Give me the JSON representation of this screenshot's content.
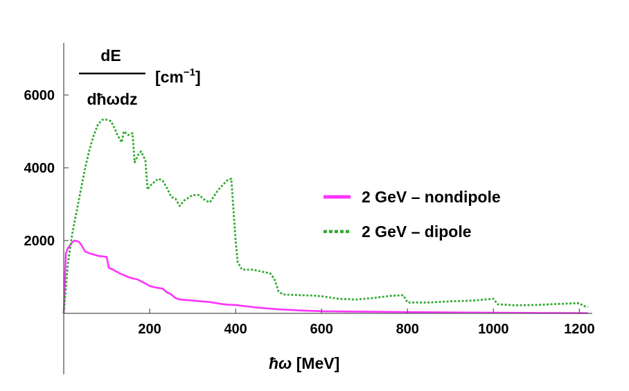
{
  "chart_data": {
    "type": "line",
    "xlabel_symbol": "ħω",
    "xlabel_unit": "[MeV]",
    "ylabel_numerator": "dE",
    "ylabel_denominator": "dħωdz",
    "ylabel_unit": "[cm",
    "ylabel_unit_exp": "−1",
    "ylabel_unit_close": "]",
    "xlim": [
      0,
      1230
    ],
    "ylim": [
      -1650,
      7500
    ],
    "x_ticks": [
      200,
      400,
      600,
      800,
      1000,
      1200
    ],
    "y_ticks": [
      2000,
      4000,
      6000
    ],
    "x_tick_labels": [
      "200",
      "400",
      "600",
      "800",
      "1000",
      "1200"
    ],
    "y_tick_labels": [
      "2000",
      "4000",
      "6000"
    ],
    "grid": false,
    "legend_position": "right",
    "series": [
      {
        "name": "2 GeV – nondipole",
        "color": "#ff33ff",
        "style": "solid",
        "x": [
          0,
          5,
          10,
          20,
          25,
          35,
          40,
          50,
          60,
          80,
          100,
          105,
          115,
          130,
          140,
          150,
          160,
          170,
          180,
          190,
          200,
          210,
          220,
          230,
          240,
          250,
          260,
          270,
          280,
          300,
          320,
          340,
          360,
          380,
          400,
          420,
          450,
          500,
          550,
          600,
          700,
          800,
          900,
          1000,
          1100,
          1200,
          1220
        ],
        "y": [
          0,
          1650,
          1800,
          1950,
          2000,
          1970,
          1900,
          1700,
          1650,
          1580,
          1550,
          1250,
          1200,
          1100,
          1050,
          1000,
          960,
          940,
          880,
          820,
          750,
          720,
          700,
          680,
          580,
          520,
          420,
          380,
          370,
          350,
          330,
          310,
          270,
          240,
          230,
          200,
          160,
          110,
          80,
          60,
          45,
          35,
          25,
          18,
          12,
          8,
          5
        ]
      },
      {
        "name": "2 GeV – dipole",
        "color": "#33aa33",
        "style": "dotted",
        "x": [
          0,
          10,
          20,
          30,
          40,
          50,
          60,
          70,
          80,
          90,
          100,
          110,
          120,
          125,
          135,
          140,
          150,
          160,
          165,
          175,
          180,
          190,
          195,
          200,
          210,
          220,
          230,
          240,
          250,
          260,
          270,
          280,
          300,
          315,
          330,
          340,
          360,
          380,
          390,
          400,
          405,
          415,
          440,
          460,
          480,
          490,
          500,
          510,
          550,
          580,
          600,
          640,
          680,
          720,
          760,
          790,
          800,
          850,
          900,
          950,
          1000,
          1010,
          1050,
          1100,
          1150,
          1200,
          1210,
          1220
        ],
        "y": [
          0,
          1400,
          2200,
          2800,
          3400,
          4000,
          4500,
          4900,
          5200,
          5320,
          5320,
          5280,
          5050,
          4900,
          4700,
          5000,
          4900,
          4950,
          4150,
          4400,
          4450,
          4200,
          3400,
          3500,
          3600,
          3700,
          3650,
          3450,
          3200,
          3150,
          2950,
          3100,
          3250,
          3250,
          3100,
          3050,
          3400,
          3650,
          3700,
          2000,
          1400,
          1200,
          1200,
          1150,
          1100,
          950,
          600,
          520,
          500,
          490,
          470,
          400,
          380,
          420,
          480,
          500,
          300,
          300,
          330,
          350,
          400,
          250,
          220,
          230,
          260,
          280,
          200,
          180
        ]
      }
    ]
  }
}
